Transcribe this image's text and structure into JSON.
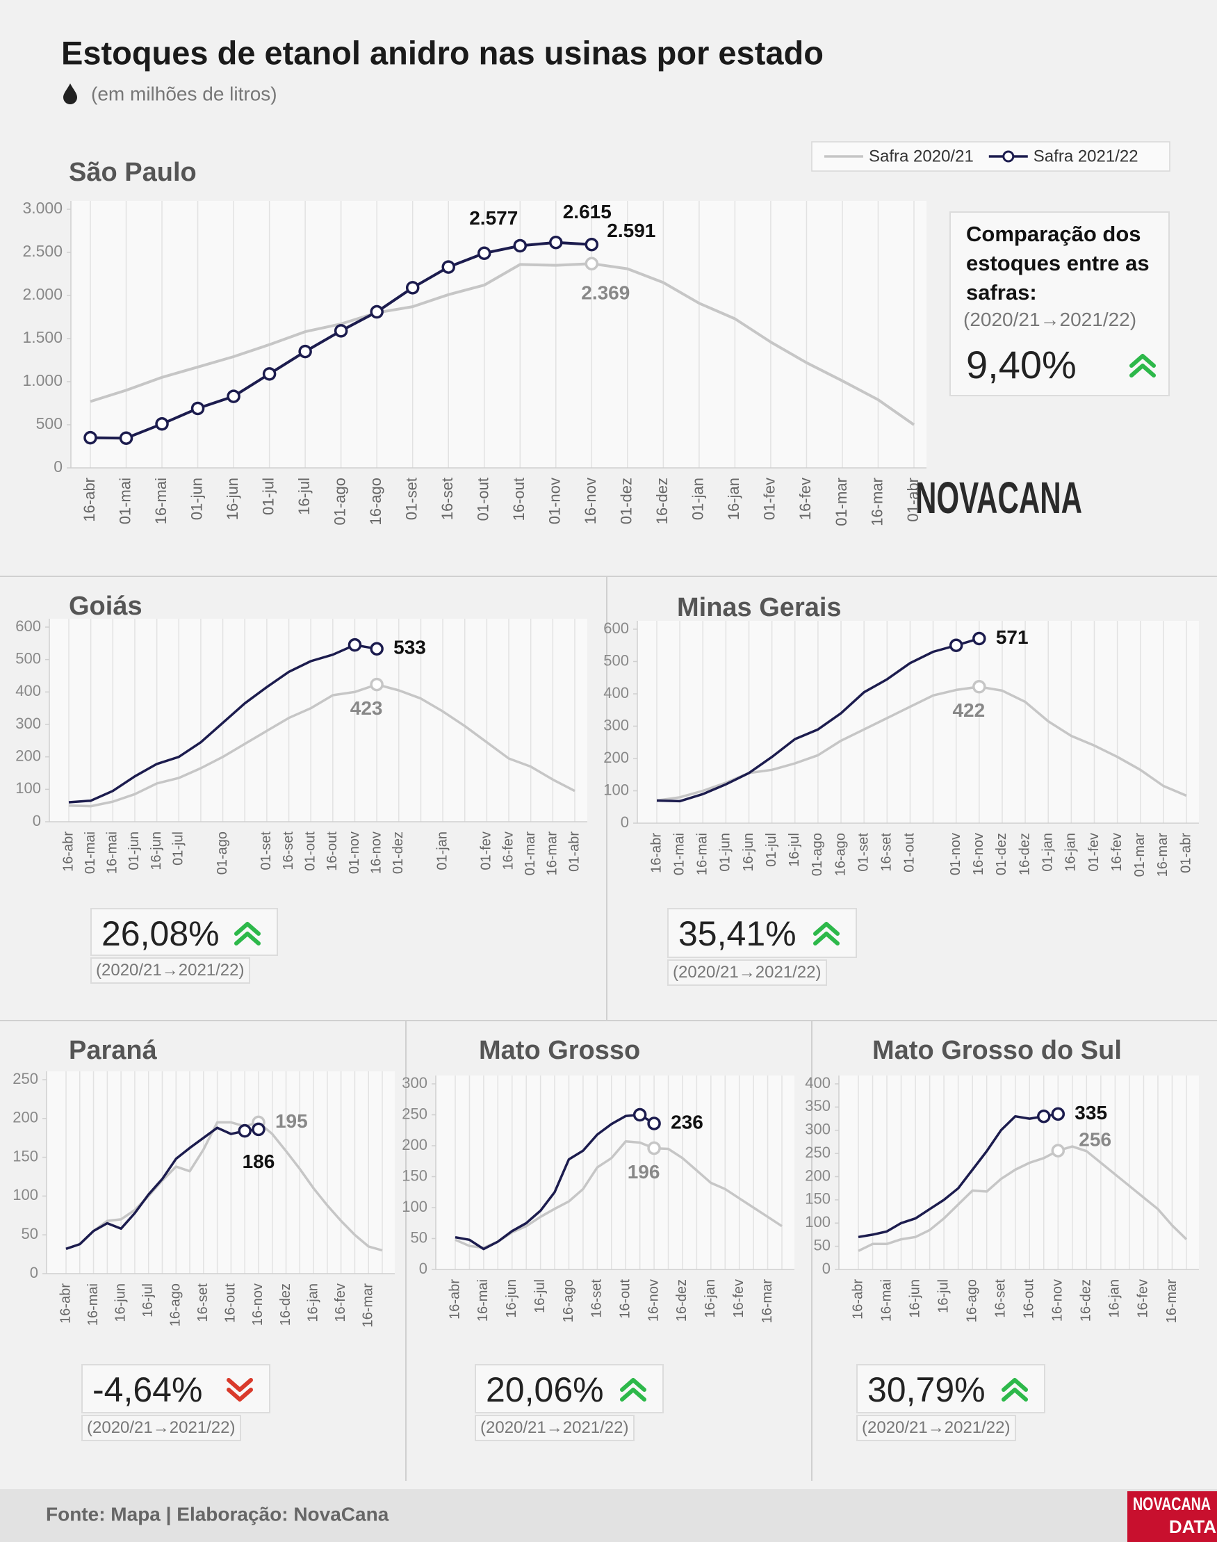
{
  "title": "Estoques de etanol anidro nas usinas por estado",
  "subtitle": "(em milhões de litros)",
  "comparison_title": "Comparação dos estoques entre as safras:",
  "logo": "NOVACANA",
  "logo_data": [
    "NOVACANA",
    "DATA"
  ],
  "source": "Fonte: Mapa | Elaboração: NovaCana",
  "chart_data": [
    {
      "type": "line",
      "title": "São Paulo",
      "categories": [
        "16-abr",
        "01-mai",
        "16-mai",
        "01-jun",
        "16-jun",
        "01-jul",
        "16-jul",
        "01-ago",
        "16-ago",
        "01-set",
        "16-set",
        "01-out",
        "16-out",
        "01-nov",
        "16-nov",
        "01-dez",
        "16-dez",
        "01-jan",
        "16-jan",
        "01-fev",
        "16-fev",
        "01-mar",
        "16-mar",
        "01-abr"
      ],
      "ylim": [
        0,
        3000
      ],
      "yticks": [
        0,
        500,
        {
          "value": 1000,
          "label": "1.000"
        },
        {
          "value": 1500,
          "label": "1.500"
        },
        {
          "value": 2000,
          "label": "2.000"
        },
        {
          "value": 2500,
          "label": "2.500"
        },
        {
          "value": 3000,
          "label": "3.000"
        }
      ],
      "legend": "top-right",
      "series": [
        {
          "name": "Safra 2020/21",
          "color": "#c6c6c6",
          "values": [
            770,
            900,
            1050,
            1170,
            1290,
            1430,
            1580,
            1670,
            1800,
            1870,
            2010,
            2120,
            2360,
            2350,
            2369,
            2310,
            2150,
            1910,
            1730,
            1460,
            1220,
            1010,
            790,
            500
          ],
          "value_labels": [
            null,
            null,
            null,
            null,
            null,
            null,
            null,
            null,
            null,
            null,
            null,
            null,
            null,
            null,
            "2.369",
            null,
            null,
            null,
            null,
            null,
            null,
            null,
            null,
            null
          ]
        },
        {
          "name": "Safra 2021/22",
          "color": "#1c1c4e",
          "markers": "all",
          "values": [
            350,
            345,
            510,
            690,
            830,
            1090,
            1350,
            1590,
            1810,
            2090,
            2330,
            2490,
            2577,
            2615,
            2591,
            null,
            null,
            null,
            null,
            null,
            null,
            null,
            null,
            null
          ],
          "value_labels": [
            null,
            null,
            null,
            null,
            null,
            null,
            null,
            null,
            null,
            null,
            null,
            null,
            "2.577",
            "2.615",
            "2.591",
            null,
            null,
            null,
            null,
            null,
            null,
            null,
            null,
            null
          ]
        }
      ],
      "comparison": {
        "value": 9.4,
        "label": "9,40%"
      },
      "period": "(2020/21→2021/22)"
    },
    {
      "type": "line",
      "title": "Goiás",
      "categories": [
        "16-abr",
        "01-mai",
        "16-mai",
        "01-jun",
        "16-jun",
        "01-jul",
        null,
        "01-ago",
        null,
        "01-set",
        "16-set",
        "01-out",
        "16-out",
        "01-nov",
        "16-nov",
        "01-dez",
        null,
        "01-jan",
        null,
        "01-fev",
        "16-fev",
        "01-mar",
        "16-mar",
        "01-abr"
      ],
      "ylim": [
        0,
        600
      ],
      "yticks": [
        0,
        100,
        200,
        300,
        400,
        500,
        600
      ],
      "series": [
        {
          "color": "#c6c6c6",
          "values": [
            50,
            48,
            62,
            85,
            118,
            135,
            165,
            200,
            240,
            280,
            320,
            350,
            390,
            400,
            423,
            405,
            380,
            340,
            295,
            245,
            195,
            170,
            130,
            95
          ],
          "value_labels": [
            null,
            null,
            null,
            null,
            null,
            null,
            null,
            null,
            null,
            null,
            null,
            null,
            null,
            null,
            "423",
            null,
            null,
            null,
            null,
            null,
            null,
            null,
            null,
            null
          ]
        },
        {
          "color": "#1c1c4e",
          "markers": "tail",
          "values": [
            60,
            65,
            95,
            140,
            178,
            200,
            245,
            305,
            365,
            415,
            462,
            495,
            515,
            545,
            533,
            null,
            null,
            null,
            null,
            null,
            null,
            null,
            null,
            null
          ],
          "value_labels": [
            null,
            null,
            null,
            null,
            null,
            null,
            null,
            null,
            null,
            null,
            null,
            null,
            null,
            null,
            "533",
            null,
            null,
            null,
            null,
            null,
            null,
            null,
            null,
            null
          ]
        }
      ],
      "comparison": {
        "value": 26.08,
        "label": "26,08%"
      },
      "period": "(2020/21→2021/22)"
    },
    {
      "type": "line",
      "title": "Minas Gerais",
      "categories": [
        "16-abr",
        "01-mai",
        "16-mai",
        "01-jun",
        "16-jun",
        "01-jul",
        "16-jul",
        "01-ago",
        "16-ago",
        "01-set",
        "16-set",
        "01-out",
        null,
        "01-nov",
        "16-nov",
        "01-dez",
        "16-dez",
        "01-jan",
        "16-jan",
        "01-fev",
        "16-fev",
        "01-mar",
        "16-mar",
        "01-abr"
      ],
      "ylim": [
        0,
        600
      ],
      "yticks": [
        0,
        100,
        200,
        300,
        400,
        500,
        600
      ],
      "series": [
        {
          "color": "#c6c6c6",
          "values": [
            70,
            80,
            100,
            125,
            155,
            165,
            185,
            210,
            255,
            290,
            325,
            360,
            395,
            412,
            422,
            410,
            375,
            315,
            270,
            240,
            205,
            165,
            115,
            85
          ],
          "value_labels": [
            null,
            null,
            null,
            null,
            null,
            null,
            null,
            null,
            null,
            null,
            null,
            null,
            null,
            null,
            "422",
            null,
            null,
            null,
            null,
            null,
            null,
            null,
            null,
            null
          ]
        },
        {
          "color": "#1c1c4e",
          "markers": "tail",
          "values": [
            70,
            68,
            90,
            120,
            155,
            205,
            260,
            290,
            340,
            405,
            445,
            495,
            530,
            550,
            571,
            null,
            null,
            null,
            null,
            null,
            null,
            null,
            null,
            null
          ],
          "value_labels": [
            null,
            null,
            null,
            null,
            null,
            null,
            null,
            null,
            null,
            null,
            null,
            null,
            null,
            null,
            "571",
            null,
            null,
            null,
            null,
            null,
            null,
            null,
            null,
            null
          ]
        }
      ],
      "comparison": {
        "value": 35.41,
        "label": "35,41%"
      },
      "period": "(2020/21→2021/22)"
    },
    {
      "type": "line",
      "title": "Paraná",
      "categories": [
        "16-abr",
        null,
        "16-mai",
        null,
        "16-jun",
        null,
        "16-jul",
        null,
        "16-ago",
        null,
        "16-set",
        null,
        "16-out",
        null,
        "16-nov",
        null,
        "16-dez",
        null,
        "16-jan",
        null,
        "16-fev",
        null,
        "16-mar",
        null
      ],
      "ylim": [
        0,
        250
      ],
      "yticks": [
        0,
        50,
        100,
        150,
        200,
        250
      ],
      "series": [
        {
          "color": "#c6c6c6",
          "values": [
            32,
            38,
            55,
            68,
            70,
            82,
            100,
            120,
            138,
            132,
            160,
            195,
            195,
            190,
            195,
            180,
            158,
            135,
            110,
            88,
            68,
            50,
            35,
            30
          ],
          "value_labels": [
            null,
            null,
            null,
            null,
            null,
            null,
            null,
            null,
            null,
            null,
            null,
            null,
            null,
            null,
            "195",
            null,
            null,
            null,
            null,
            null,
            null,
            null,
            null,
            null
          ]
        },
        {
          "color": "#1c1c4e",
          "markers": "tail",
          "values": [
            32,
            38,
            55,
            65,
            58,
            78,
            102,
            122,
            148,
            162,
            175,
            188,
            180,
            184,
            186,
            null,
            null,
            null,
            null,
            null,
            null,
            null,
            null,
            null
          ],
          "value_labels": [
            null,
            null,
            null,
            null,
            null,
            null,
            null,
            null,
            null,
            null,
            null,
            null,
            null,
            null,
            "186",
            null,
            null,
            null,
            null,
            null,
            null,
            null,
            null,
            null
          ]
        }
      ],
      "comparison": {
        "value": -4.64,
        "label": "-4,64%"
      },
      "period": "(2020/21→2021/22)"
    },
    {
      "type": "line",
      "title": "Mato Grosso",
      "categories": [
        "16-abr",
        null,
        "16-mai",
        null,
        "16-jun",
        null,
        "16-jul",
        null,
        "16-ago",
        null,
        "16-set",
        null,
        "16-out",
        null,
        "16-nov",
        null,
        "16-dez",
        null,
        "16-jan",
        null,
        "16-fev",
        null,
        "16-mar",
        null
      ],
      "ylim": [
        0,
        300
      ],
      "yticks": [
        0,
        50,
        100,
        150,
        200,
        250,
        300
      ],
      "series": [
        {
          "color": "#c6c6c6",
          "values": [
            48,
            38,
            35,
            45,
            60,
            70,
            85,
            98,
            110,
            130,
            165,
            180,
            207,
            205,
            196,
            195,
            180,
            160,
            140,
            130,
            115,
            100,
            85,
            70
          ],
          "value_labels": [
            null,
            null,
            null,
            null,
            null,
            null,
            null,
            null,
            null,
            null,
            null,
            null,
            null,
            null,
            "196",
            null,
            null,
            null,
            null,
            null,
            null,
            null,
            null,
            null
          ]
        },
        {
          "color": "#1c1c4e",
          "markers": "tail",
          "values": [
            52,
            48,
            33,
            45,
            62,
            75,
            95,
            125,
            178,
            192,
            218,
            235,
            248,
            250,
            236,
            null,
            null,
            null,
            null,
            null,
            null,
            null,
            null,
            null
          ],
          "value_labels": [
            null,
            null,
            null,
            null,
            null,
            null,
            null,
            null,
            null,
            null,
            null,
            null,
            null,
            null,
            "236",
            null,
            null,
            null,
            null,
            null,
            null,
            null,
            null,
            null
          ]
        }
      ],
      "comparison": {
        "value": 20.06,
        "label": "20,06%"
      },
      "period": "(2020/21→2021/22)"
    },
    {
      "type": "line",
      "title": "Mato Grosso do Sul",
      "categories": [
        "16-abr",
        null,
        "16-mai",
        null,
        "16-jun",
        null,
        "16-jul",
        null,
        "16-ago",
        null,
        "16-set",
        null,
        "16-out",
        null,
        "16-nov",
        null,
        "16-dez",
        null,
        "16-jan",
        null,
        "16-fev",
        null,
        "16-mar",
        null
      ],
      "ylim": [
        0,
        400
      ],
      "yticks": [
        0,
        50,
        100,
        150,
        200,
        250,
        300,
        350,
        400
      ],
      "series": [
        {
          "color": "#c6c6c6",
          "values": [
            40,
            55,
            55,
            65,
            70,
            85,
            110,
            140,
            170,
            168,
            195,
            215,
            230,
            240,
            256,
            265,
            255,
            230,
            205,
            180,
            155,
            130,
            95,
            65
          ],
          "value_labels": [
            null,
            null,
            null,
            null,
            null,
            null,
            null,
            null,
            null,
            null,
            null,
            null,
            null,
            null,
            "256",
            null,
            null,
            null,
            null,
            null,
            null,
            null,
            null,
            null
          ]
        },
        {
          "color": "#1c1c4e",
          "markers": "tail",
          "values": [
            70,
            75,
            82,
            100,
            110,
            130,
            150,
            175,
            215,
            255,
            300,
            330,
            325,
            330,
            335,
            null,
            null,
            null,
            null,
            null,
            null,
            null,
            null,
            null
          ],
          "value_labels": [
            null,
            null,
            null,
            null,
            null,
            null,
            null,
            null,
            null,
            null,
            null,
            null,
            null,
            null,
            "335",
            null,
            null,
            null,
            null,
            null,
            null,
            null,
            null,
            null
          ]
        }
      ],
      "comparison": {
        "value": 30.79,
        "label": "30,79%"
      },
      "period": "(2020/21→2021/22)"
    }
  ]
}
